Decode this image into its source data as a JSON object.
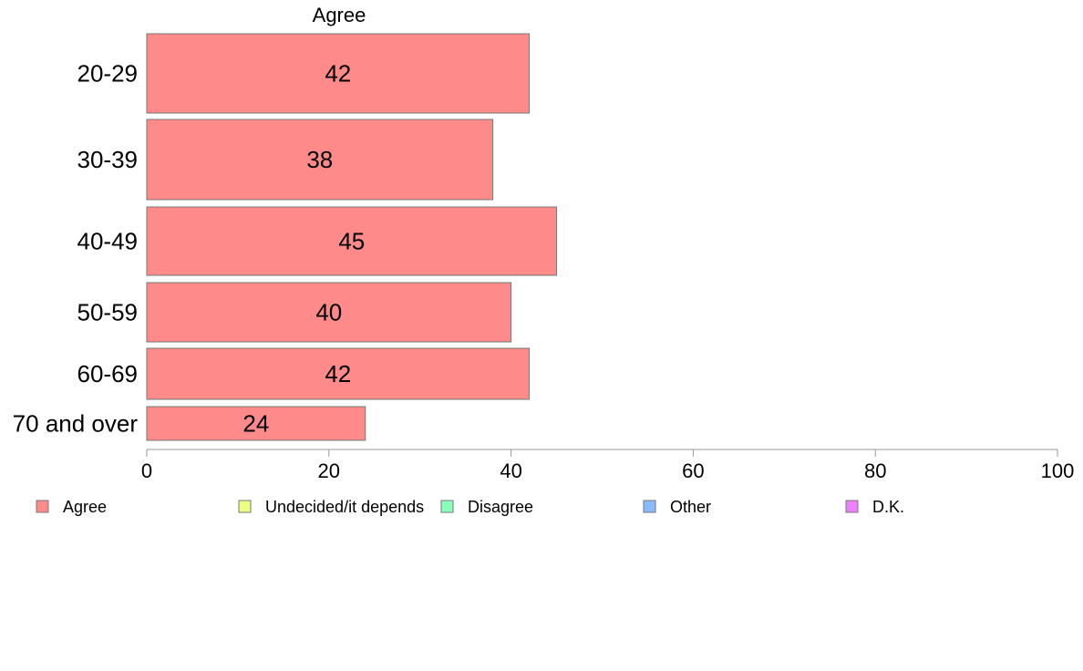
{
  "chart_data": {
    "type": "bar",
    "orientation": "horizontal",
    "series_header": "Agree",
    "categories": [
      "20-29",
      "30-39",
      "40-49",
      "50-59",
      "60-69",
      "70 and over"
    ],
    "series": [
      {
        "name": "Agree",
        "color": "#ff8a8a",
        "values": [
          42,
          38,
          45,
          40,
          42,
          24
        ],
        "labels": [
          "42",
          "38",
          "45",
          "40",
          "42",
          "24"
        ]
      }
    ],
    "xlim": [
      0,
      100
    ],
    "xticks": [
      0,
      20,
      40,
      60,
      80,
      100
    ],
    "xtick_labels": [
      "0",
      "20",
      "40",
      "60",
      "80",
      "100"
    ],
    "grid": false,
    "legend_position": "bottom",
    "legend": [
      {
        "label": "Agree",
        "color": "#ff8a8a"
      },
      {
        "label": "Undecided/it depends",
        "color": "#eeff80"
      },
      {
        "label": "Disagree",
        "color": "#88ffbb"
      },
      {
        "label": "Other",
        "color": "#88bbff"
      },
      {
        "label": "D.K.",
        "color": "#ee80ff"
      }
    ]
  }
}
